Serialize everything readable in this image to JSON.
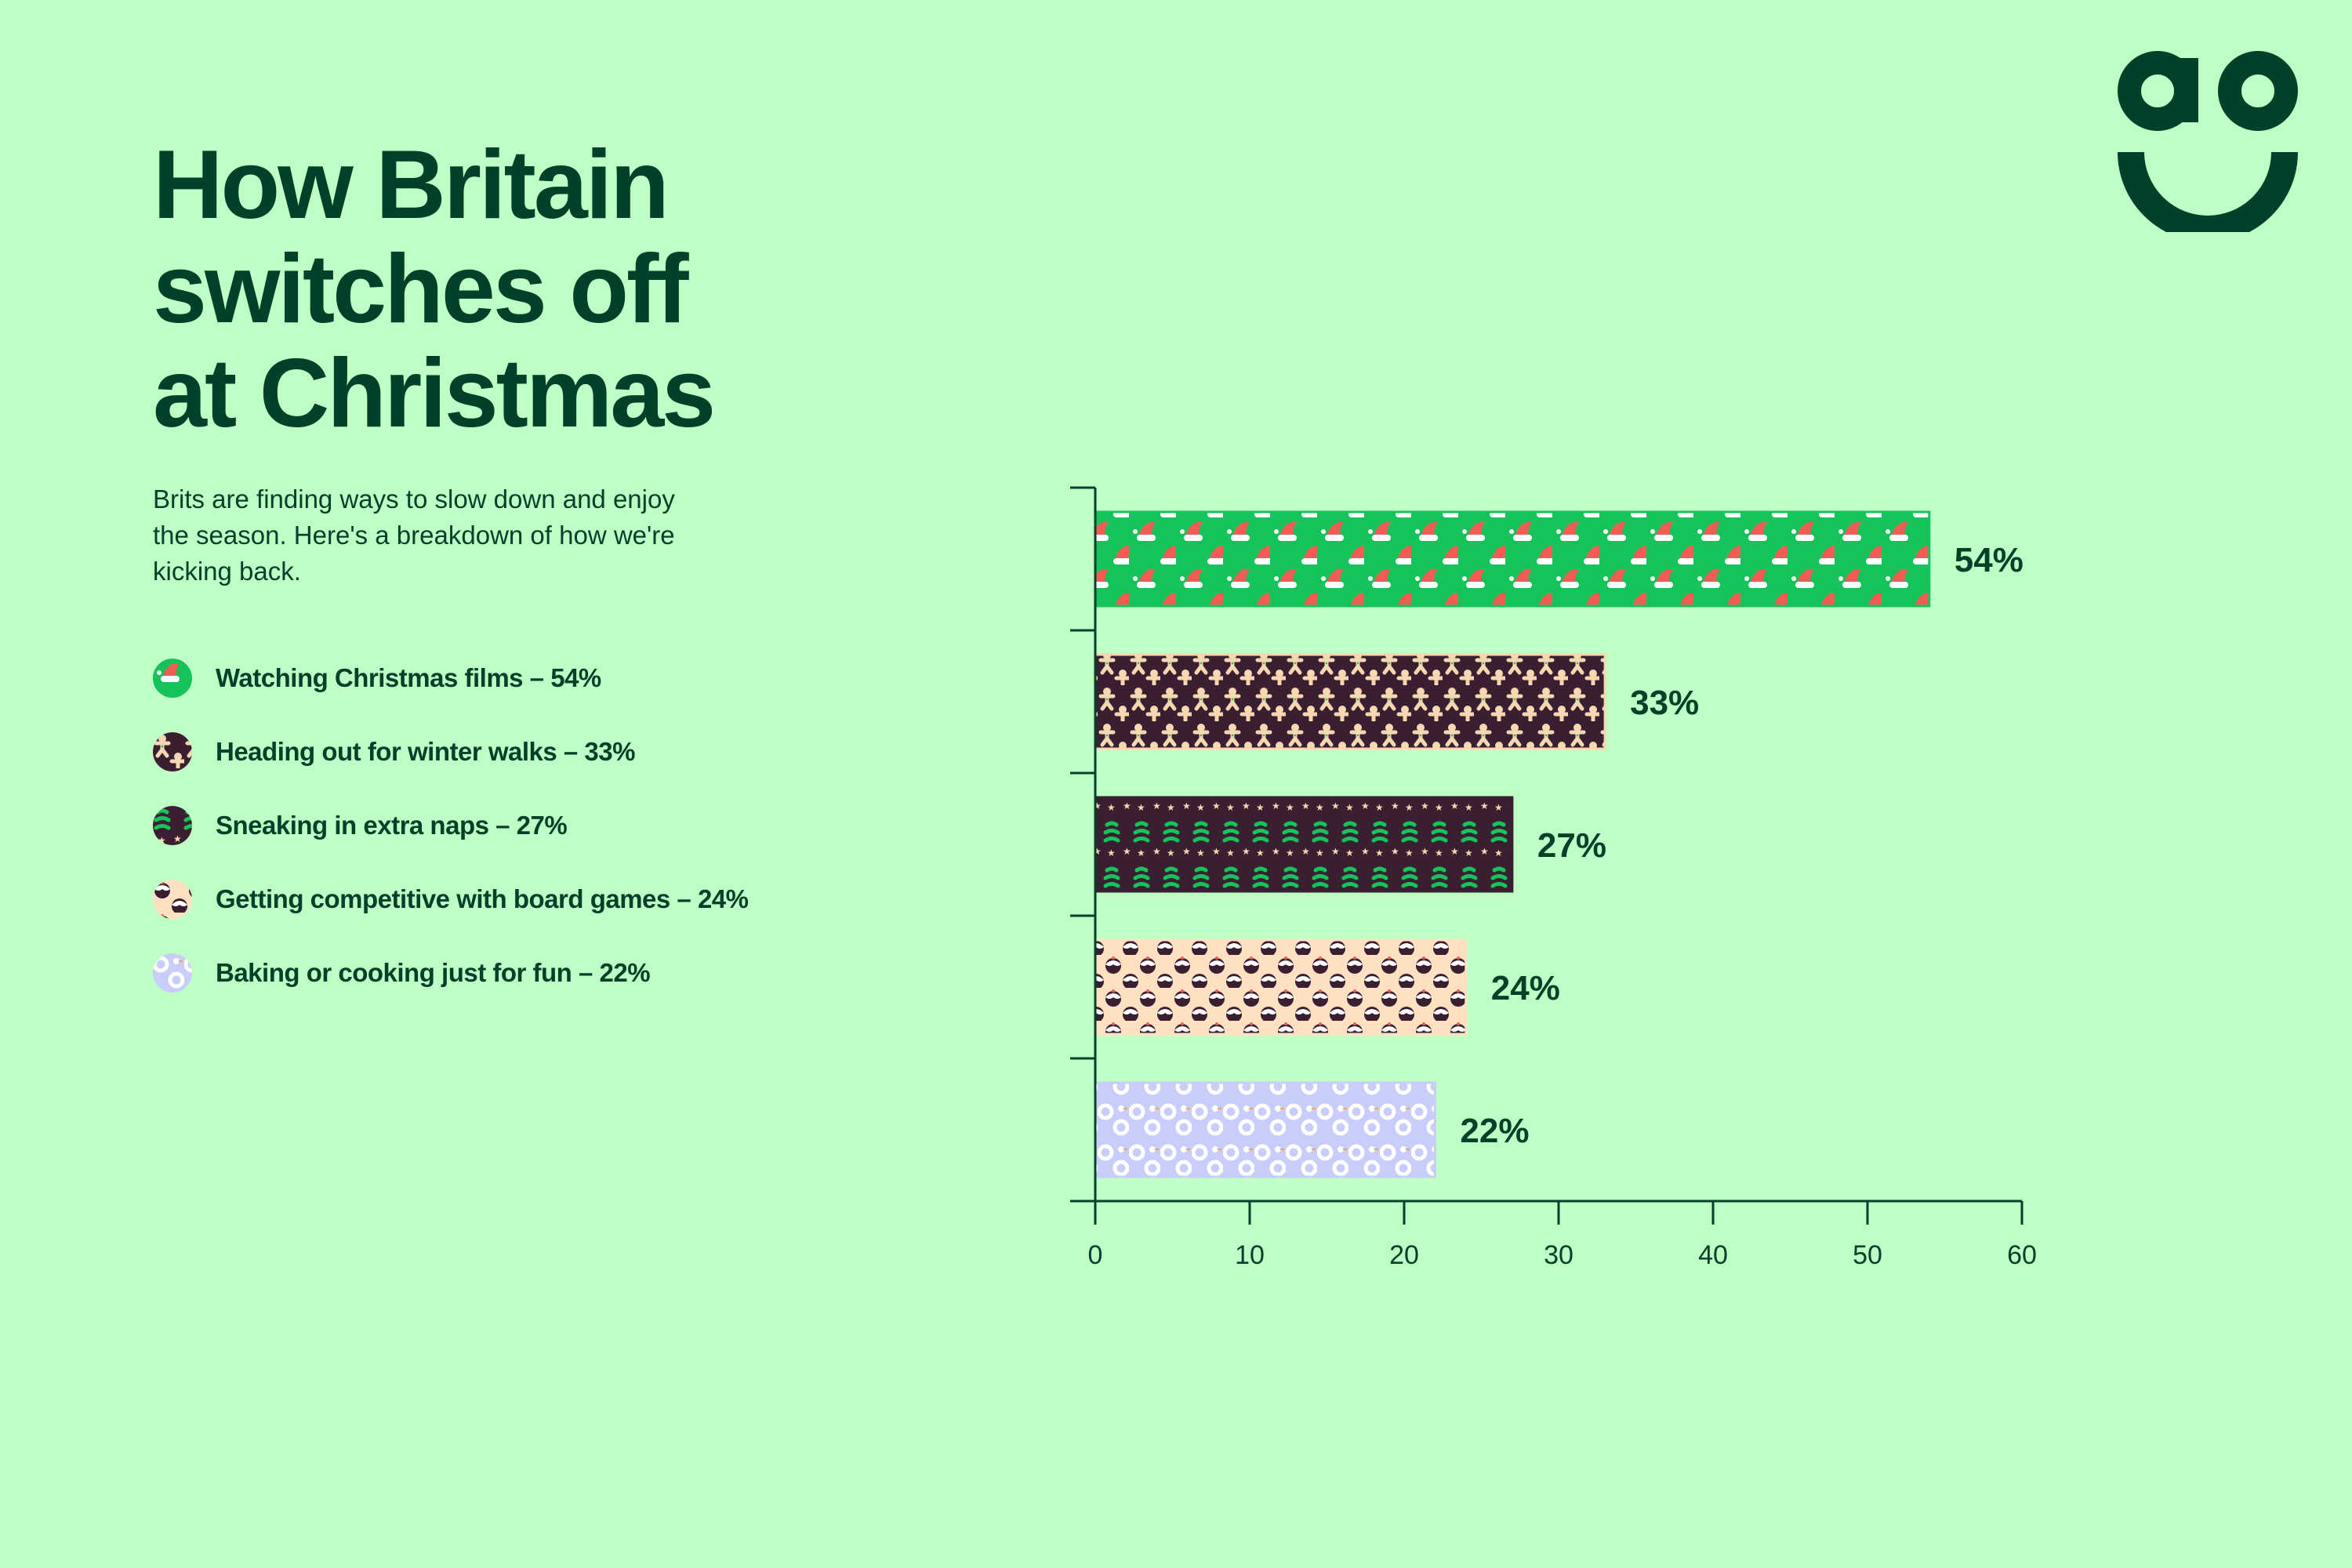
{
  "title_lines": [
    "How Britain",
    "switches off",
    "at Christmas"
  ],
  "subtitle": "Brits are finding ways to slow down and enjoy the season. Here's a breakdown of how we're kicking back.",
  "logo_text": "ao",
  "colors": {
    "background": "#bfffc6",
    "text": "#01412a"
  },
  "legend": [
    {
      "label": "Watching Christmas films – 54%",
      "pattern": "santa-hats"
    },
    {
      "label": "Heading out for winter walks – 33%",
      "pattern": "gingerbread"
    },
    {
      "label": "Sneaking in extra naps – 27%",
      "pattern": "trees"
    },
    {
      "label": "Getting competitive with board games – 24%",
      "pattern": "puddings"
    },
    {
      "label": "Baking or cooking just for fun – 22%",
      "pattern": "snowmen"
    }
  ],
  "chart_data": {
    "type": "bar",
    "orientation": "horizontal",
    "categories": [
      "Watching Christmas films",
      "Heading out for winter walks",
      "Sneaking in extra naps",
      "Getting competitive with board games",
      "Baking or cooking just for fun"
    ],
    "values": [
      54,
      33,
      27,
      24,
      22
    ],
    "data_labels": [
      "54%",
      "33%",
      "27%",
      "24%",
      "22%"
    ],
    "patterns": [
      "santa-hats",
      "gingerbread",
      "trees",
      "puddings",
      "snowmen"
    ],
    "xlim": [
      0,
      60
    ],
    "xticks": [
      0,
      10,
      20,
      30,
      40,
      50,
      60
    ],
    "xtick_labels": [
      "0",
      "10",
      "20",
      "30",
      "40",
      "50",
      "60"
    ],
    "grid": false,
    "xlabel": "",
    "ylabel": ""
  }
}
